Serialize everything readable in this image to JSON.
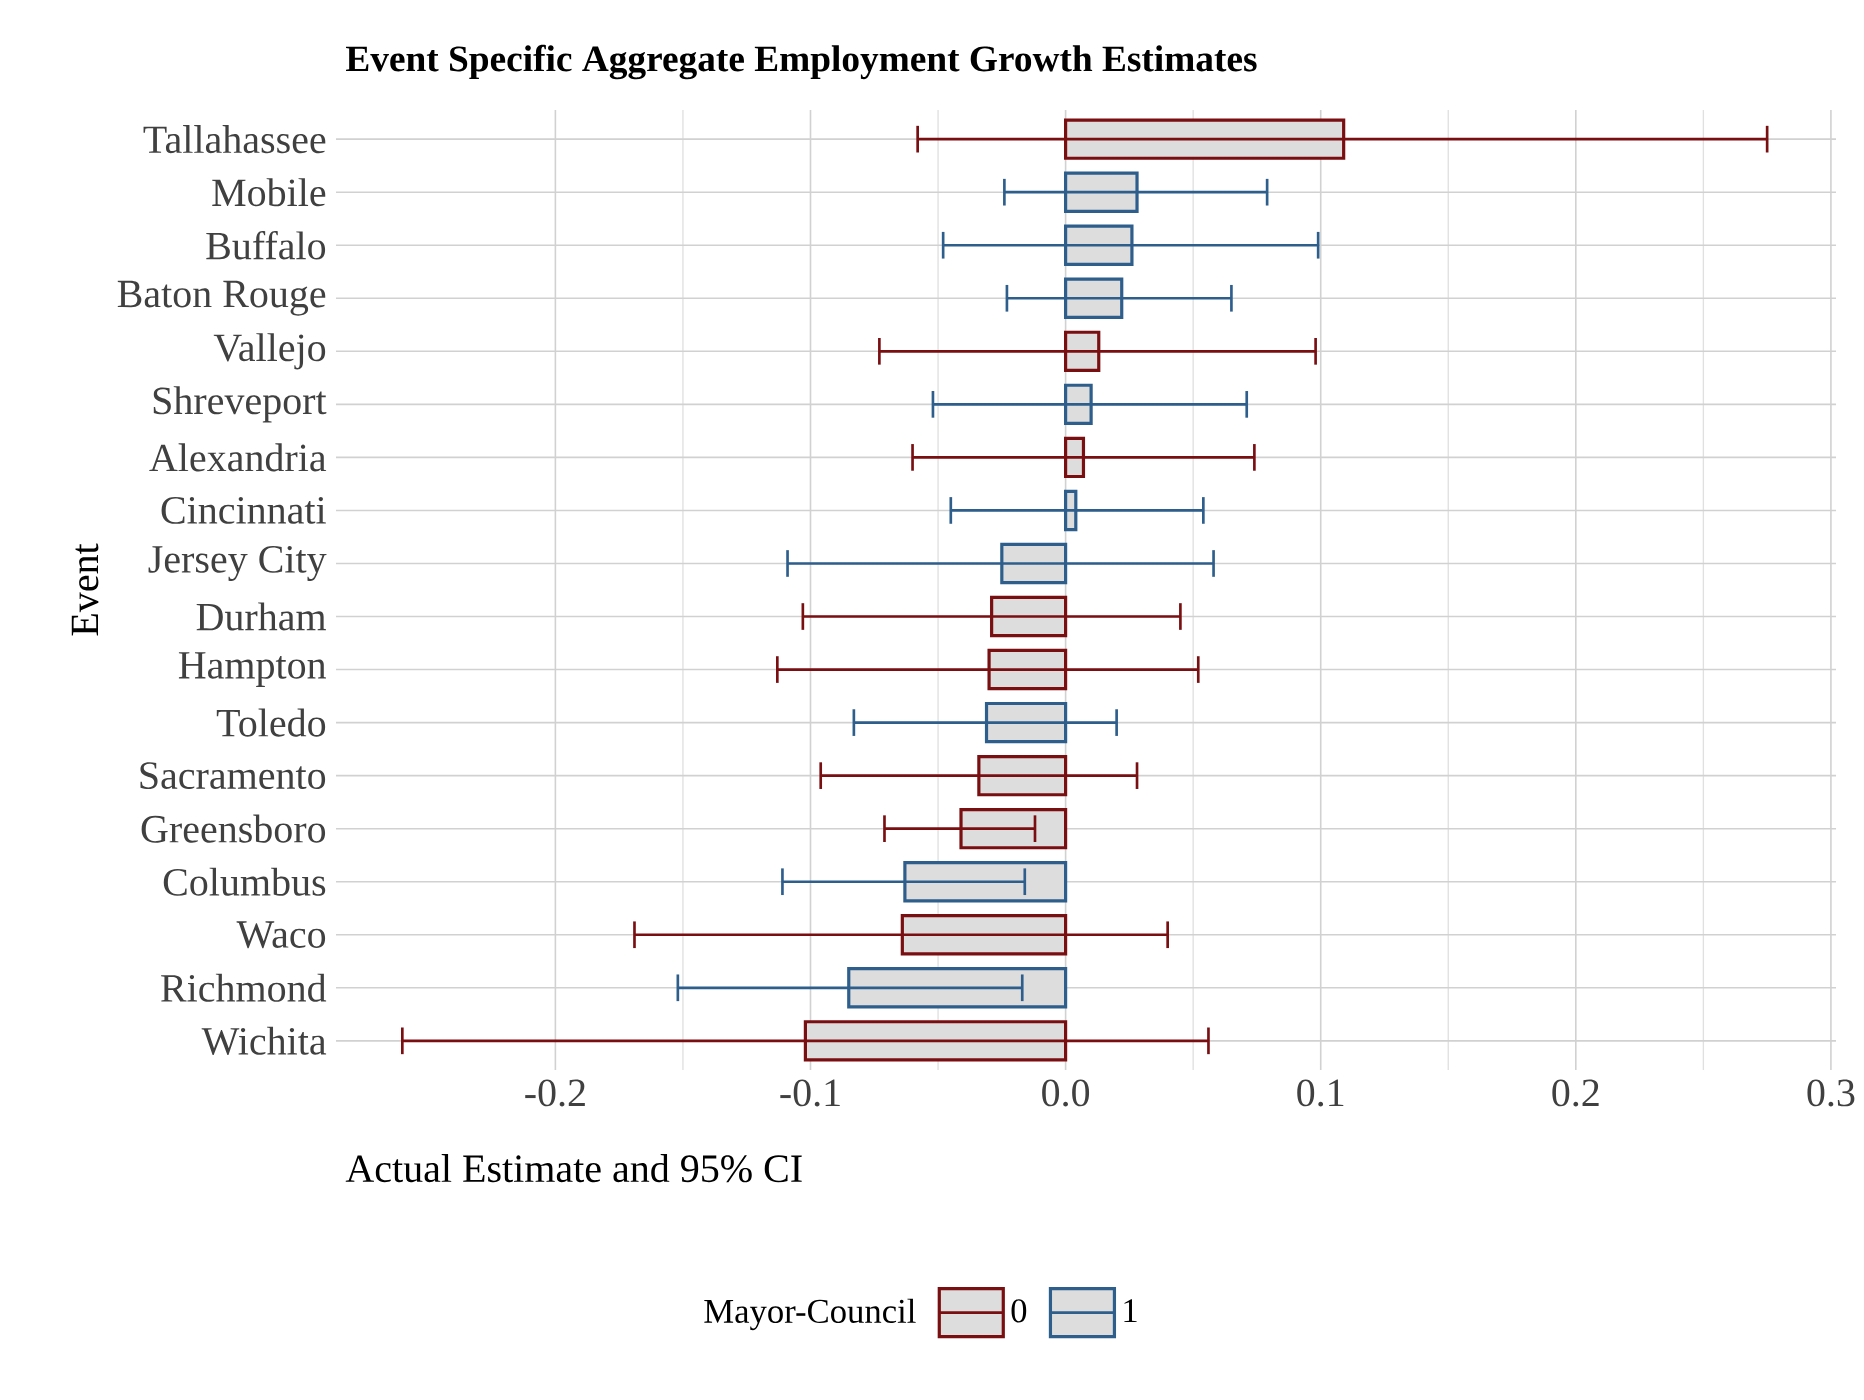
{
  "chart_data": {
    "type": "bar",
    "orientation": "horizontal",
    "title": "Event Specific Aggregate Employment Growth Estimates",
    "xlabel": "Actual Estimate and 95% CI",
    "ylabel": "Event",
    "legend_title": "Mayor-Council",
    "legend": "bottom",
    "grid": true,
    "categories": [
      "Tallahassee",
      "Mobile",
      "Buffalo",
      "Baton Rouge",
      "Vallejo",
      "Shreveport",
      "Alexandria",
      "Cincinnati",
      "Jersey City",
      "Durham",
      "Hampton",
      "Toledo",
      "Sacramento",
      "Greensboro",
      "Columbus",
      "Waco",
      "Richmond",
      "Wichita"
    ],
    "xlim": [
      -0.286,
      0.302
    ],
    "xticks": [
      -0.2,
      -0.1,
      {
        "value": 0,
        "label": "0.0"
      },
      0.1,
      0.2,
      0.3
    ],
    "series": [
      {
        "name": "0",
        "color": "#7a0f12",
        "values": [
          0.109,
          null,
          null,
          null,
          0.013,
          null,
          0.007,
          null,
          null,
          -0.029,
          -0.03,
          null,
          -0.034,
          -0.041,
          null,
          -0.064,
          null,
          -0.102
        ],
        "errors": [
          [
            -0.058,
            0.275
          ],
          null,
          null,
          null,
          [
            -0.073,
            0.098
          ],
          null,
          [
            -0.06,
            0.074
          ],
          null,
          null,
          [
            -0.103,
            0.045
          ],
          [
            -0.113,
            0.052
          ],
          null,
          [
            -0.096,
            0.028
          ],
          [
            -0.071,
            -0.012
          ],
          null,
          [
            -0.169,
            0.04
          ],
          null,
          [
            -0.26,
            0.056
          ]
        ]
      },
      {
        "name": "1",
        "color": "#2e5e8c",
        "values": [
          null,
          0.028,
          0.026,
          0.022,
          null,
          0.01,
          null,
          0.004,
          -0.025,
          null,
          null,
          -0.031,
          null,
          null,
          -0.063,
          null,
          -0.085,
          null
        ],
        "errors": [
          null,
          [
            -0.024,
            0.079
          ],
          [
            -0.048,
            0.099
          ],
          [
            -0.023,
            0.065
          ],
          null,
          [
            -0.052,
            0.071
          ],
          null,
          [
            -0.045,
            0.054
          ],
          [
            -0.109,
            0.058
          ],
          null,
          null,
          [
            -0.083,
            0.02
          ],
          null,
          null,
          [
            -0.111,
            -0.016
          ],
          null,
          [
            -0.152,
            -0.017
          ],
          null
        ]
      }
    ]
  }
}
